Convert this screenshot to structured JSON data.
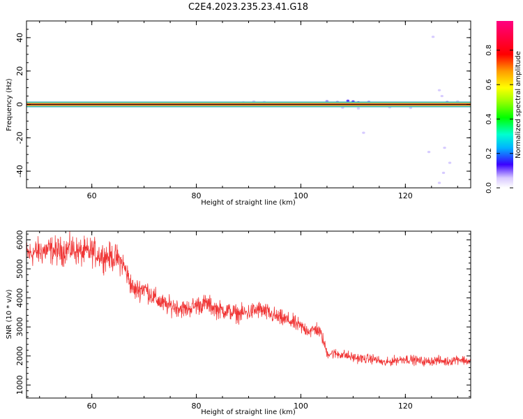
{
  "page_title": "C2E4.2023.235.23.41.G18",
  "chart_data": [
    {
      "type": "heatmap",
      "title": "",
      "xlabel": "Height of straight line (km)",
      "ylabel": "Frequency (Hz)",
      "xlim": [
        47.5,
        132.5
      ],
      "ylim": [
        -50,
        50
      ],
      "xticks": [
        60,
        80,
        100,
        120
      ],
      "yticks": [
        -40,
        -20,
        0,
        20,
        40
      ],
      "xtick_labels": [
        "60",
        "80",
        "100",
        "120"
      ],
      "ytick_labels": [
        "-40",
        "-20",
        "0",
        "20",
        "40"
      ],
      "grid": false,
      "band": {
        "center_hz": 0,
        "core_amplitude": 0.9,
        "edge_amplitude": 0.4
      },
      "scatter_points": [
        {
          "x": 89,
          "y": 1.2,
          "amp": 0.05
        },
        {
          "x": 91,
          "y": 1.8,
          "amp": 0.06
        },
        {
          "x": 93,
          "y": 1.4,
          "amp": 0.05
        },
        {
          "x": 105,
          "y": 2.0,
          "amp": 0.12
        },
        {
          "x": 107,
          "y": 1.5,
          "amp": 0.15
        },
        {
          "x": 109,
          "y": 2.2,
          "amp": 0.2
        },
        {
          "x": 110,
          "y": 1.8,
          "amp": 0.25
        },
        {
          "x": 111,
          "y": 1.2,
          "amp": 0.22
        },
        {
          "x": 113,
          "y": 1.6,
          "amp": 0.1
        },
        {
          "x": 108,
          "y": -2.0,
          "amp": 0.08
        },
        {
          "x": 111,
          "y": -2.4,
          "amp": 0.06
        },
        {
          "x": 117,
          "y": -1.8,
          "amp": 0.07
        },
        {
          "x": 121,
          "y": -2.1,
          "amp": 0.05
        },
        {
          "x": 126.5,
          "y": 8.5,
          "amp": 0.05
        },
        {
          "x": 127,
          "y": 5.0,
          "amp": 0.05
        },
        {
          "x": 128,
          "y": 1.5,
          "amp": 0.1
        },
        {
          "x": 130,
          "y": 1.8,
          "amp": 0.06
        },
        {
          "x": 124.5,
          "y": -28.5,
          "amp": 0.05
        },
        {
          "x": 127.5,
          "y": -26.0,
          "amp": 0.04
        },
        {
          "x": 128.5,
          "y": -35.0,
          "amp": 0.05
        },
        {
          "x": 127.3,
          "y": -41.0,
          "amp": 0.05
        },
        {
          "x": 126.5,
          "y": -47.0,
          "amp": 0.04
        },
        {
          "x": 125.3,
          "y": 40.5,
          "amp": 0.03
        },
        {
          "x": 112.0,
          "y": -17.0,
          "amp": 0.03
        }
      ],
      "colorbar": {
        "label": "Normalized spectral amplitude",
        "ticks": [
          0.0,
          0.2,
          0.4,
          0.6,
          0.8
        ],
        "tick_labels": [
          "0.0",
          "0.2",
          "0.4",
          "0.6",
          "0.8"
        ],
        "range": [
          0.0,
          0.97
        ]
      }
    },
    {
      "type": "line",
      "title": "",
      "xlabel": "Height of straight line (km)",
      "ylabel": "SNR (10 * v/v)",
      "xlim": [
        47.5,
        132.5
      ],
      "ylim": [
        550,
        6300
      ],
      "xticks": [
        60,
        80,
        100,
        120
      ],
      "yticks": [
        1000,
        2000,
        3000,
        4000,
        5000,
        6000
      ],
      "xtick_labels": [
        "60",
        "80",
        "100",
        "120"
      ],
      "ytick_labels": [
        "1000",
        "2000",
        "3000",
        "4000",
        "5000",
        "6000"
      ],
      "grid": false,
      "color": "#f03535",
      "series": [
        {
          "x": [
            47.5,
            50,
            52,
            54,
            56,
            58,
            60,
            62,
            64,
            65,
            66,
            67,
            68,
            70,
            72,
            74,
            76,
            78,
            80,
            82,
            84,
            86,
            88,
            90,
            92,
            94,
            96,
            98,
            100,
            102,
            103,
            104,
            105,
            108,
            110,
            112,
            114,
            116,
            118,
            120,
            122,
            124,
            126,
            128,
            130,
            132.5
          ],
          "values": [
            5500,
            5600,
            5650,
            5600,
            5700,
            5550,
            5600,
            5450,
            5400,
            5350,
            5150,
            4700,
            4250,
            4350,
            4000,
            3750,
            3700,
            3600,
            3750,
            3800,
            3600,
            3550,
            3450,
            3500,
            3600,
            3450,
            3300,
            3200,
            3000,
            2850,
            2950,
            2700,
            2100,
            2050,
            1950,
            1900,
            1900,
            1750,
            1850,
            1900,
            1850,
            1800,
            1850,
            1800,
            1900,
            1800
          ]
        }
      ]
    }
  ]
}
